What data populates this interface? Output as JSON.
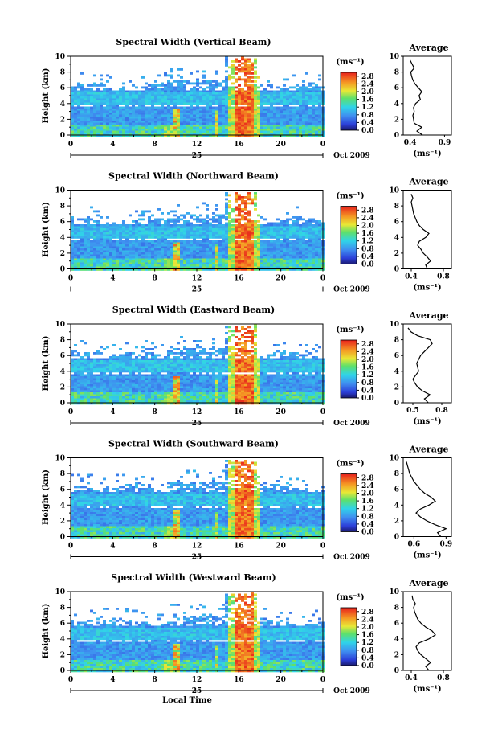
{
  "chart_data": {
    "type": "heatmap",
    "date_label": "Oct 2009",
    "day_label": "25",
    "xlabel": "Local Time",
    "x_ticks": [
      "0",
      "4",
      "8",
      "12",
      "16",
      "20",
      "0"
    ],
    "xlim_hours": [
      0,
      24
    ],
    "ylabel": "Height (km)",
    "y_ticks": [
      "0",
      "2",
      "4",
      "6",
      "8",
      "10"
    ],
    "ylim_km": [
      0,
      10
    ],
    "colorbar": {
      "unit": "(ms⁻¹)",
      "ticks": [
        "0.0",
        "0.4",
        "0.8",
        "1.2",
        "1.6",
        "2.0",
        "2.4",
        "2.8"
      ],
      "range": [
        0,
        3.0
      ]
    },
    "profile_title": "Average",
    "profile_xlabel": "(ms⁻¹)",
    "panels": [
      {
        "title": "Spectral Width (Vertical Beam)",
        "profile_ticks": [
          "0.4",
          "0.9"
        ],
        "profile_range": [
          0.3,
          1.0
        ],
        "profile": [
          [
            0.0,
            0.58
          ],
          [
            0.5,
            0.5
          ],
          [
            1.0,
            0.57
          ],
          [
            1.5,
            0.46
          ],
          [
            2.0,
            0.45
          ],
          [
            2.5,
            0.44
          ],
          [
            3.0,
            0.46
          ],
          [
            3.5,
            0.45
          ],
          [
            4.0,
            0.48
          ],
          [
            4.5,
            0.55
          ],
          [
            5.0,
            0.53
          ],
          [
            5.5,
            0.57
          ],
          [
            6.0,
            0.52
          ],
          [
            6.5,
            0.47
          ],
          [
            7.0,
            0.44
          ],
          [
            7.5,
            0.42
          ],
          [
            8.0,
            0.41
          ],
          [
            8.5,
            0.46
          ],
          [
            9.0,
            0.43
          ],
          [
            9.5,
            0.4
          ]
        ]
      },
      {
        "title": "Spectral Width (Northward Beam)",
        "profile_ticks": [
          "0.4",
          "0.8"
        ],
        "profile_range": [
          0.3,
          0.9
        ],
        "profile": [
          [
            0.0,
            0.6
          ],
          [
            0.5,
            0.58
          ],
          [
            1.0,
            0.64
          ],
          [
            1.5,
            0.6
          ],
          [
            2.0,
            0.55
          ],
          [
            2.5,
            0.52
          ],
          [
            3.0,
            0.48
          ],
          [
            3.5,
            0.5
          ],
          [
            4.0,
            0.58
          ],
          [
            4.5,
            0.62
          ],
          [
            5.0,
            0.55
          ],
          [
            5.5,
            0.5
          ],
          [
            6.0,
            0.47
          ],
          [
            6.5,
            0.45
          ],
          [
            7.0,
            0.43
          ],
          [
            7.5,
            0.42
          ],
          [
            8.0,
            0.41
          ],
          [
            8.5,
            0.4
          ],
          [
            9.0,
            0.42
          ],
          [
            9.5,
            0.4
          ]
        ]
      },
      {
        "title": "Spectral Width (Eastward Beam)",
        "profile_ticks": [
          "0.5",
          "0.8"
        ],
        "profile_range": [
          0.4,
          0.9
        ],
        "profile": [
          [
            0.0,
            0.66
          ],
          [
            0.5,
            0.62
          ],
          [
            1.0,
            0.68
          ],
          [
            1.5,
            0.6
          ],
          [
            2.0,
            0.55
          ],
          [
            2.5,
            0.52
          ],
          [
            3.0,
            0.5
          ],
          [
            3.5,
            0.53
          ],
          [
            4.0,
            0.56
          ],
          [
            4.5,
            0.55
          ],
          [
            5.0,
            0.54
          ],
          [
            5.5,
            0.56
          ],
          [
            6.0,
            0.58
          ],
          [
            6.5,
            0.62
          ],
          [
            7.0,
            0.66
          ],
          [
            7.5,
            0.7
          ],
          [
            8.0,
            0.68
          ],
          [
            8.5,
            0.55
          ],
          [
            9.0,
            0.48
          ],
          [
            9.5,
            0.45
          ]
        ]
      },
      {
        "title": "Spectral Width (Southward Beam)",
        "profile_ticks": [
          "0.6",
          "0.9"
        ],
        "profile_range": [
          0.5,
          0.95
        ],
        "profile": [
          [
            0.0,
            0.85
          ],
          [
            0.5,
            0.82
          ],
          [
            1.0,
            0.9
          ],
          [
            1.5,
            0.8
          ],
          [
            2.0,
            0.72
          ],
          [
            2.5,
            0.66
          ],
          [
            3.0,
            0.62
          ],
          [
            3.5,
            0.66
          ],
          [
            4.0,
            0.74
          ],
          [
            4.5,
            0.8
          ],
          [
            5.0,
            0.76
          ],
          [
            5.5,
            0.7
          ],
          [
            6.0,
            0.66
          ],
          [
            6.5,
            0.63
          ],
          [
            7.0,
            0.6
          ],
          [
            7.5,
            0.58
          ],
          [
            8.0,
            0.56
          ],
          [
            8.5,
            0.55
          ],
          [
            9.0,
            0.54
          ],
          [
            9.5,
            0.53
          ]
        ]
      },
      {
        "title": "Spectral Width (Westward Beam)",
        "profile_ticks": [
          "0.4",
          "0.8"
        ],
        "profile_range": [
          0.3,
          0.9
        ],
        "profile": [
          [
            0.0,
            0.62
          ],
          [
            0.5,
            0.58
          ],
          [
            1.0,
            0.64
          ],
          [
            1.5,
            0.58
          ],
          [
            2.0,
            0.52
          ],
          [
            2.5,
            0.48
          ],
          [
            3.0,
            0.46
          ],
          [
            3.5,
            0.5
          ],
          [
            4.0,
            0.62
          ],
          [
            4.5,
            0.7
          ],
          [
            5.0,
            0.66
          ],
          [
            5.5,
            0.58
          ],
          [
            6.0,
            0.52
          ],
          [
            6.5,
            0.48
          ],
          [
            7.0,
            0.46
          ],
          [
            7.5,
            0.44
          ],
          [
            8.0,
            0.43
          ],
          [
            8.5,
            0.45
          ],
          [
            9.0,
            0.42
          ],
          [
            9.5,
            0.41
          ]
        ]
      }
    ]
  }
}
